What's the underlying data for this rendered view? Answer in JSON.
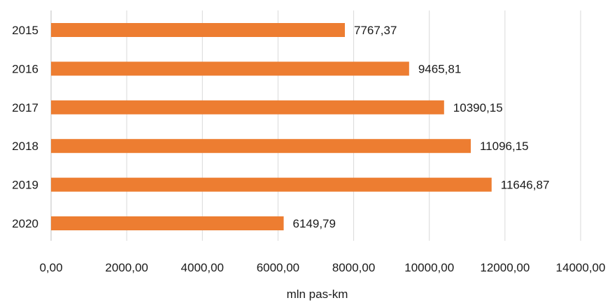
{
  "chart_data": {
    "type": "bar",
    "orientation": "horizontal",
    "categories": [
      "2015",
      "2016",
      "2017",
      "2018",
      "2019",
      "2020"
    ],
    "values": [
      7767.37,
      9465.81,
      10390.15,
      11096.15,
      11646.87,
      6149.79
    ],
    "value_labels": [
      "7767,37",
      "9465,81",
      "10390,15",
      "11096,15",
      "11646,87",
      "6149,79"
    ],
    "xlim": [
      0,
      14000
    ],
    "x_ticks": [
      0,
      2000,
      4000,
      6000,
      8000,
      10000,
      12000,
      14000
    ],
    "x_tick_labels": [
      "0,00",
      "2000,00",
      "4000,00",
      "6000,00",
      "8000,00",
      "10000,00",
      "12000,00",
      "14000,00"
    ],
    "xlabel": "mln pas-km",
    "ylabel": "",
    "title": "",
    "grid": true,
    "bar_color": "#ED7D31",
    "grid_color": "#D9D9D9"
  }
}
